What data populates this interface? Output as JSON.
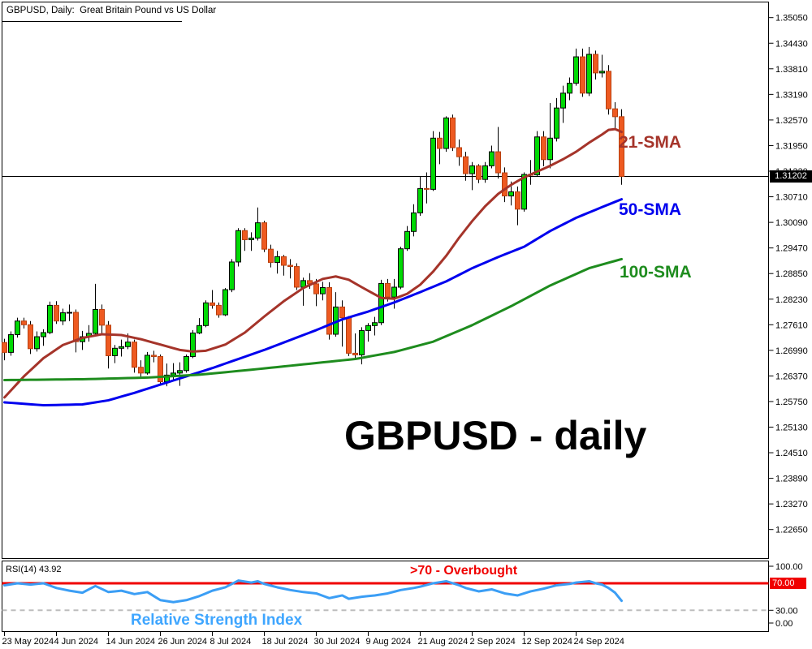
{
  "chart_data": {
    "type": "candlestick",
    "symbol": "GBPUSD",
    "timeframe": "Daily",
    "title": "GBPUSD, Daily:  Great Britain Pound vs US Dollar",
    "watermark": "GBPUSD - daily",
    "current_price": "1.31202",
    "y_axis": {
      "tick_labels": [
        "1.35050",
        "1.34430",
        "1.33810",
        "1.33190",
        "1.32570",
        "1.31950",
        "1.31330",
        "1.30710",
        "1.30090",
        "1.29470",
        "1.28850",
        "1.28230",
        "1.27610",
        "1.26990",
        "1.26370",
        "1.25750",
        "1.25130",
        "1.24510",
        "1.23890",
        "1.23270",
        "1.22650"
      ],
      "top_value": 1.3505,
      "step": 0.0062
    },
    "x_axis": {
      "tick_labels": [
        "23 May 2024",
        "4 Jun 2024",
        "14 Jun 2024",
        "26 Jun 2024",
        "8 Jul 2024",
        "18 Jul 2024",
        "30 Jul 2024",
        "9 Aug 2024",
        "21 Aug 2024",
        "2 Sep 2024",
        "12 Sep 2024",
        "24 Sep 2024"
      ],
      "tick_candle_indices": [
        0,
        8,
        16,
        24,
        32,
        40,
        48,
        56,
        64,
        72,
        80,
        88
      ]
    },
    "candles": {
      "bull_color": "#00d904",
      "bear_color": "#ee5a21",
      "bull_border": "#000000",
      "bear_border": "#b8400f",
      "wick_color": "#000000",
      "ohlc": [
        [
          1.2718,
          1.2727,
          1.2675,
          1.2694
        ],
        [
          1.2694,
          1.2745,
          1.2686,
          1.2737
        ],
        [
          1.2737,
          1.2778,
          1.273,
          1.277
        ],
        [
          1.277,
          1.2778,
          1.2752,
          1.2761
        ],
        [
          1.2761,
          1.277,
          1.269,
          1.2703
        ],
        [
          1.2703,
          1.2745,
          1.2696,
          1.2732
        ],
        [
          1.2732,
          1.275,
          1.271,
          1.2742
        ],
        [
          1.2742,
          1.2817,
          1.2738,
          1.2808
        ],
        [
          1.2808,
          1.2818,
          1.2763,
          1.277
        ],
        [
          1.277,
          1.28,
          1.276,
          1.279
        ],
        [
          1.279,
          1.281,
          1.277,
          1.2791
        ],
        [
          1.2791,
          1.2798,
          1.2694,
          1.272
        ],
        [
          1.272,
          1.2746,
          1.27,
          1.2732
        ],
        [
          1.2732,
          1.276,
          1.272,
          1.274
        ],
        [
          1.274,
          1.286,
          1.2735,
          1.2798
        ],
        [
          1.2798,
          1.281,
          1.2738,
          1.276
        ],
        [
          1.276,
          1.277,
          1.2655,
          1.2686
        ],
        [
          1.2686,
          1.2712,
          1.2668,
          1.2704
        ],
        [
          1.2704,
          1.2725,
          1.2684,
          1.2708
        ],
        [
          1.2708,
          1.274,
          1.2702,
          1.2719
        ],
        [
          1.2719,
          1.2725,
          1.2645,
          1.2658
        ],
        [
          1.2658,
          1.2675,
          1.2635,
          1.2644
        ],
        [
          1.2644,
          1.2695,
          1.264,
          1.2687
        ],
        [
          1.2687,
          1.2698,
          1.267,
          1.2684
        ],
        [
          1.2684,
          1.2689,
          1.2616,
          1.2623
        ],
        [
          1.2623,
          1.2667,
          1.2612,
          1.2639
        ],
        [
          1.2639,
          1.2668,
          1.2626,
          1.2644
        ],
        [
          1.2644,
          1.267,
          1.2613,
          1.265
        ],
        [
          1.265,
          1.2689,
          1.2645,
          1.2684
        ],
        [
          1.2684,
          1.2748,
          1.268,
          1.2741
        ],
        [
          1.2741,
          1.2777,
          1.2738,
          1.2759
        ],
        [
          1.2759,
          1.282,
          1.2755,
          1.2814
        ],
        [
          1.2814,
          1.2845,
          1.28,
          1.2808
        ],
        [
          1.2808,
          1.2815,
          1.2778,
          1.2785
        ],
        [
          1.2785,
          1.285,
          1.2782,
          1.2846
        ],
        [
          1.2846,
          1.292,
          1.284,
          1.2913
        ],
        [
          1.2913,
          1.2995,
          1.2902,
          1.2989
        ],
        [
          1.2989,
          1.2995,
          1.294,
          1.2967
        ],
        [
          1.2967,
          1.2985,
          1.294,
          1.2971
        ],
        [
          1.2971,
          1.3045,
          1.2965,
          1.3008
        ],
        [
          1.3008,
          1.3013,
          1.2937,
          1.2944
        ],
        [
          1.2944,
          1.2955,
          1.29,
          1.2912
        ],
        [
          1.2912,
          1.294,
          1.2885,
          1.2926
        ],
        [
          1.2926,
          1.293,
          1.288,
          1.2905
        ],
        [
          1.2905,
          1.292,
          1.2873,
          1.2902
        ],
        [
          1.2902,
          1.291,
          1.2845,
          1.2852
        ],
        [
          1.2852,
          1.2875,
          1.2807,
          1.2868
        ],
        [
          1.2868,
          1.2886,
          1.2848,
          1.286
        ],
        [
          1.286,
          1.2872,
          1.2806,
          1.2836
        ],
        [
          1.2836,
          1.2865,
          1.282,
          1.2851
        ],
        [
          1.2851,
          1.2864,
          1.2725,
          1.2738
        ],
        [
          1.2738,
          1.284,
          1.2732,
          1.2804
        ],
        [
          1.2804,
          1.282,
          1.2708,
          1.2778
        ],
        [
          1.2778,
          1.2782,
          1.2685,
          1.2692
        ],
        [
          1.2692,
          1.274,
          1.268,
          1.2688
        ],
        [
          1.2688,
          1.2755,
          1.2665,
          1.2747
        ],
        [
          1.2747,
          1.2765,
          1.272,
          1.2759
        ],
        [
          1.2759,
          1.278,
          1.2735,
          1.2766
        ],
        [
          1.2766,
          1.287,
          1.276,
          1.2861
        ],
        [
          1.2861,
          1.2872,
          1.2817,
          1.2828
        ],
        [
          1.2828,
          1.2872,
          1.28,
          1.2852
        ],
        [
          1.2852,
          1.295,
          1.2847,
          1.2945
        ],
        [
          1.2945,
          1.3,
          1.294,
          1.2987
        ],
        [
          1.2987,
          1.3053,
          1.2975,
          1.3032
        ],
        [
          1.3032,
          1.312,
          1.3025,
          1.3091
        ],
        [
          1.3091,
          1.313,
          1.3055,
          1.3089
        ],
        [
          1.3089,
          1.323,
          1.3085,
          1.3213
        ],
        [
          1.3213,
          1.3228,
          1.315,
          1.3188
        ],
        [
          1.3188,
          1.3266,
          1.318,
          1.3262
        ],
        [
          1.3262,
          1.327,
          1.3182,
          1.319
        ],
        [
          1.319,
          1.321,
          1.3146,
          1.3168
        ],
        [
          1.3168,
          1.318,
          1.311,
          1.3127
        ],
        [
          1.3127,
          1.3155,
          1.3087,
          1.3146
        ],
        [
          1.3146,
          1.315,
          1.3104,
          1.3113
        ],
        [
          1.3113,
          1.3155,
          1.3105,
          1.3146
        ],
        [
          1.3146,
          1.3195,
          1.314,
          1.318
        ],
        [
          1.318,
          1.324,
          1.3115,
          1.3129
        ],
        [
          1.3129,
          1.3142,
          1.3058,
          1.3073
        ],
        [
          1.3073,
          1.3108,
          1.305,
          1.3083
        ],
        [
          1.3083,
          1.3096,
          1.3002,
          1.3041
        ],
        [
          1.3041,
          1.313,
          1.3035,
          1.3125
        ],
        [
          1.3125,
          1.316,
          1.31,
          1.3124
        ],
        [
          1.3124,
          1.323,
          1.312,
          1.3216
        ],
        [
          1.3216,
          1.323,
          1.3145,
          1.3161
        ],
        [
          1.3161,
          1.3298,
          1.314,
          1.3213
        ],
        [
          1.3213,
          1.331,
          1.3205,
          1.3286
        ],
        [
          1.3286,
          1.334,
          1.325,
          1.3322
        ],
        [
          1.3322,
          1.336,
          1.3305,
          1.3346
        ],
        [
          1.3346,
          1.343,
          1.334,
          1.341
        ],
        [
          1.341,
          1.343,
          1.3313,
          1.3322
        ],
        [
          1.3322,
          1.3434,
          1.3315,
          1.3416
        ],
        [
          1.3416,
          1.3425,
          1.3355,
          1.3371
        ],
        [
          1.3371,
          1.3415,
          1.336,
          1.3375
        ],
        [
          1.3375,
          1.339,
          1.327,
          1.3284
        ],
        [
          1.3284,
          1.33,
          1.3235,
          1.3265
        ],
        [
          1.3265,
          1.3283,
          1.31,
          1.31202
        ]
      ]
    },
    "overlays": [
      {
        "label": "21-SMA",
        "color": "#a5342a",
        "keypoints": [
          [
            0,
            1.2585
          ],
          [
            3,
            1.2636
          ],
          [
            6,
            1.268
          ],
          [
            9,
            1.2712
          ],
          [
            12,
            1.2729
          ],
          [
            15,
            1.2738
          ],
          [
            18,
            1.2736
          ],
          [
            21,
            1.2726
          ],
          [
            24,
            1.2713
          ],
          [
            27,
            1.27
          ],
          [
            29,
            1.2696
          ],
          [
            31,
            1.2698
          ],
          [
            34,
            1.2713
          ],
          [
            37,
            1.2742
          ],
          [
            40,
            1.2781
          ],
          [
            43,
            1.2818
          ],
          [
            46,
            1.285
          ],
          [
            49,
            1.2872
          ],
          [
            51,
            1.2878
          ],
          [
            53,
            1.287
          ],
          [
            55,
            1.2852
          ],
          [
            58,
            1.2826
          ],
          [
            60,
            1.2824
          ],
          [
            62,
            1.2836
          ],
          [
            64,
            1.2858
          ],
          [
            66,
            1.289
          ],
          [
            68,
            1.2928
          ],
          [
            70,
            1.2972
          ],
          [
            72,
            1.3012
          ],
          [
            74,
            1.3048
          ],
          [
            76,
            1.3078
          ],
          [
            78,
            1.31
          ],
          [
            80,
            1.3118
          ],
          [
            82,
            1.3132
          ],
          [
            84,
            1.3146
          ],
          [
            86,
            1.3162
          ],
          [
            88,
            1.318
          ],
          [
            90,
            1.3202
          ],
          [
            92,
            1.3222
          ],
          [
            93,
            1.3233
          ],
          [
            94,
            1.3235
          ],
          [
            95,
            1.3228
          ]
        ]
      },
      {
        "label": "50-SMA",
        "color": "#0000ee",
        "keypoints": [
          [
            0,
            1.2573
          ],
          [
            6,
            1.2566
          ],
          [
            12,
            1.2568
          ],
          [
            16,
            1.2578
          ],
          [
            20,
            1.2596
          ],
          [
            24,
            1.2616
          ],
          [
            28,
            1.2636
          ],
          [
            32,
            1.2656
          ],
          [
            36,
            1.2678
          ],
          [
            40,
            1.27
          ],
          [
            44,
            1.2724
          ],
          [
            48,
            1.2748
          ],
          [
            52,
            1.2774
          ],
          [
            56,
            1.2793
          ],
          [
            60,
            1.2815
          ],
          [
            64,
            1.284
          ],
          [
            68,
            1.2866
          ],
          [
            72,
            1.2898
          ],
          [
            76,
            1.2925
          ],
          [
            80,
            1.295
          ],
          [
            84,
            1.2988
          ],
          [
            88,
            1.302
          ],
          [
            92,
            1.3046
          ],
          [
            95,
            1.3065
          ]
        ]
      },
      {
        "label": "100-SMA",
        "color": "#1e8c1e",
        "keypoints": [
          [
            0,
            1.2627
          ],
          [
            12,
            1.2629
          ],
          [
            22,
            1.2633
          ],
          [
            30,
            1.264
          ],
          [
            38,
            1.2652
          ],
          [
            46,
            1.2665
          ],
          [
            54,
            1.2678
          ],
          [
            60,
            1.2695
          ],
          [
            66,
            1.272
          ],
          [
            72,
            1.276
          ],
          [
            78,
            1.2806
          ],
          [
            84,
            1.2856
          ],
          [
            90,
            1.2898
          ],
          [
            95,
            1.292
          ]
        ]
      }
    ],
    "rsi_panel": {
      "indicator_label": "RSI(14) 43.92",
      "annotation_overbought": ">70 - Overbought",
      "annotation_title": "Relative Strength Index",
      "line_color": "#3b9ef5",
      "title_color": "#3fa6ff",
      "overbought_color": "#f00000",
      "levels": {
        "overbought": 70,
        "oversold": 30
      },
      "tick_labels": [
        "100.00",
        "70.00",
        "30.00",
        "0.00"
      ],
      "last_value": 43.92,
      "keypoints": [
        [
          0,
          67
        ],
        [
          2,
          70
        ],
        [
          4,
          68
        ],
        [
          6,
          70
        ],
        [
          8,
          63
        ],
        [
          10,
          59
        ],
        [
          12,
          56
        ],
        [
          14,
          66
        ],
        [
          16,
          57
        ],
        [
          18,
          59
        ],
        [
          20,
          54
        ],
        [
          22,
          57
        ],
        [
          24,
          45
        ],
        [
          26,
          42
        ],
        [
          28,
          45
        ],
        [
          30,
          51
        ],
        [
          32,
          59
        ],
        [
          34,
          64
        ],
        [
          36,
          74
        ],
        [
          38,
          71
        ],
        [
          39,
          73
        ],
        [
          40,
          69
        ],
        [
          42,
          64
        ],
        [
          44,
          60
        ],
        [
          46,
          57
        ],
        [
          48,
          55
        ],
        [
          50,
          48
        ],
        [
          52,
          52
        ],
        [
          53,
          47
        ],
        [
          55,
          50
        ],
        [
          57,
          52
        ],
        [
          59,
          55
        ],
        [
          61,
          60
        ],
        [
          63,
          63
        ],
        [
          64,
          65
        ],
        [
          66,
          70
        ],
        [
          68,
          73
        ],
        [
          70,
          67
        ],
        [
          71,
          63
        ],
        [
          73,
          58
        ],
        [
          75,
          61
        ],
        [
          77,
          55
        ],
        [
          79,
          52
        ],
        [
          81,
          58
        ],
        [
          83,
          62
        ],
        [
          85,
          67
        ],
        [
          87,
          69
        ],
        [
          88,
          71
        ],
        [
          90,
          73
        ],
        [
          91,
          70
        ],
        [
          92,
          68
        ],
        [
          93,
          63
        ],
        [
          94,
          56
        ],
        [
          95,
          44
        ]
      ]
    }
  }
}
